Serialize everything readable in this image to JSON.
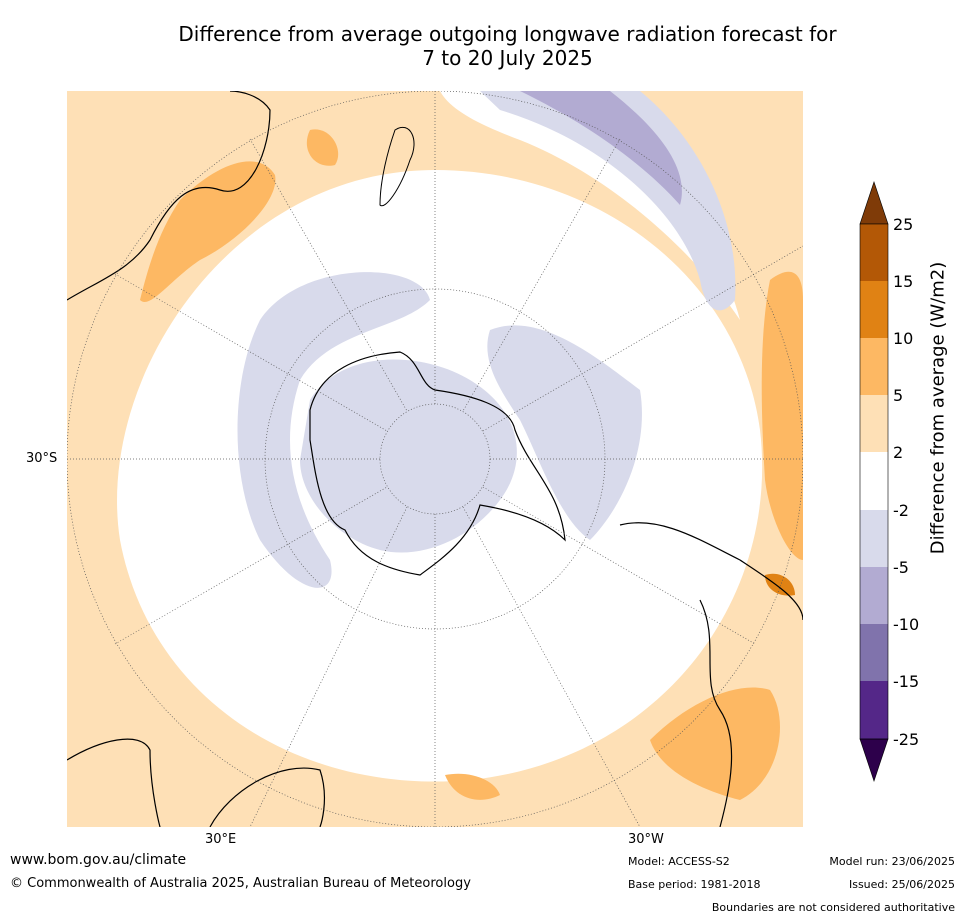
{
  "title_line1": "Difference from average outgoing longwave radiation forecast for",
  "title_line2": "7 to 20 July 2025",
  "map": {
    "projection": "south-polar-stereographic",
    "lon_labels": [
      "30°E",
      "30°W"
    ],
    "lat_labels": [
      "30°S"
    ]
  },
  "colorbar": {
    "title": "Difference from average (W/m2)",
    "ticks": [
      "25",
      "15",
      "10",
      "5",
      "2",
      "-2",
      "-5",
      "-10",
      "-15",
      "-25"
    ],
    "bins": [
      {
        "range": ">25",
        "color": "#7f3b08"
      },
      {
        "range": "15 to 25",
        "color": "#b35806"
      },
      {
        "range": "10 to 15",
        "color": "#e08214"
      },
      {
        "range": "5 to 10",
        "color": "#fdb863"
      },
      {
        "range": "2 to 5",
        "color": "#fee0b6"
      },
      {
        "range": "-2 to 2",
        "color": "#ffffff"
      },
      {
        "range": "-5 to -2",
        "color": "#d8daeb"
      },
      {
        "range": "-10 to -5",
        "color": "#b2abd2"
      },
      {
        "range": "-15 to -10",
        "color": "#8073ac"
      },
      {
        "range": "-25 to -15",
        "color": "#542788"
      },
      {
        "range": "<-25",
        "color": "#2d004b"
      }
    ]
  },
  "footer": {
    "url": "www.bom.gov.au/climate",
    "copyright": "© Commonwealth of Australia 2025, Australian Bureau of Meteorology",
    "model": "Model: ACCESS-S2",
    "base_period": "Base period: 1981-2018",
    "model_run": "Model run: 23/06/2025",
    "issued": "Issued: 25/06/2025",
    "disclaimer": "Boundaries are not considered authoritative"
  }
}
